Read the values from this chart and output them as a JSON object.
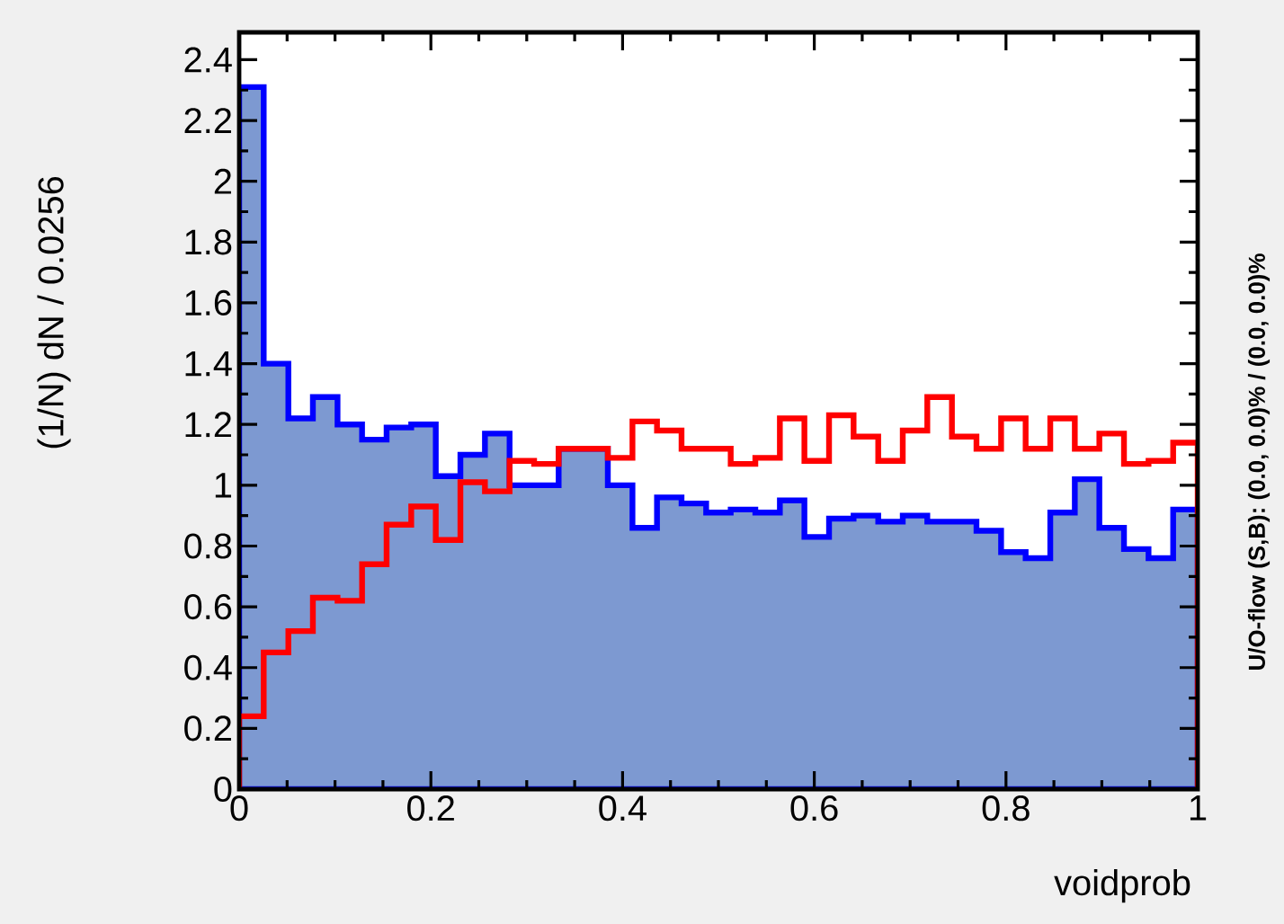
{
  "chart_data": {
    "type": "histogram",
    "xlabel": "voidprob",
    "ylabel": "(1/N) dN / 0.0256",
    "annotations": [
      "U/O-flow (S,B): (0.0, 0.0)% / (0.0, 0.0)%"
    ],
    "bins": [
      0,
      0.0256,
      0.0513,
      0.0769,
      0.1026,
      0.1282,
      0.1538,
      0.1795,
      0.2051,
      0.2308,
      0.2564,
      0.2821,
      0.3077,
      0.3333,
      0.359,
      0.3846,
      0.4103,
      0.4359,
      0.4615,
      0.4872,
      0.5128,
      0.5385,
      0.5641,
      0.5897,
      0.6154,
      0.641,
      0.6667,
      0.6923,
      0.7179,
      0.7436,
      0.7692,
      0.7949,
      0.8205,
      0.8462,
      0.8718,
      0.8974,
      0.9231,
      0.9487,
      0.9744,
      1
    ],
    "series": [
      {
        "color": "#7d99d1",
        "values": [
          2.31,
          1.4,
          1.22,
          1.29,
          1.2,
          1.15,
          1.19,
          1.2,
          1.03,
          1.1,
          1.17,
          1.0,
          1.0,
          1.12,
          1.12,
          1.0,
          0.86,
          0.96,
          0.94,
          0.91,
          0.92,
          0.91,
          0.95,
          0.83,
          0.89,
          0.9,
          0.88,
          0.9,
          0.88,
          0.88,
          0.85,
          0.78,
          0.76,
          0.91,
          1.02,
          0.86,
          0.79,
          0.76,
          0.92
        ]
      },
      {
        "color": "#ff0000",
        "values": [
          0.24,
          0.45,
          0.52,
          0.63,
          0.62,
          0.74,
          0.87,
          0.93,
          0.82,
          1.01,
          0.98,
          1.08,
          1.07,
          1.12,
          1.12,
          1.09,
          1.21,
          1.18,
          1.12,
          1.12,
          1.07,
          1.09,
          1.22,
          1.08,
          1.23,
          1.16,
          1.08,
          1.18,
          1.29,
          1.16,
          1.12,
          1.22,
          1.12,
          1.22,
          1.12,
          1.17,
          1.07,
          1.08,
          1.14
        ]
      }
    ],
    "xlim": [
      0,
      1
    ],
    "ylim": [
      0,
      2.49
    ],
    "xticks": [
      0,
      0.2,
      0.4,
      0.6,
      0.8,
      1
    ],
    "yticks": [
      0,
      0.2,
      0.4,
      0.6,
      0.8,
      1,
      1.2,
      1.4,
      1.6,
      1.8,
      2,
      2.2,
      2.4
    ]
  }
}
